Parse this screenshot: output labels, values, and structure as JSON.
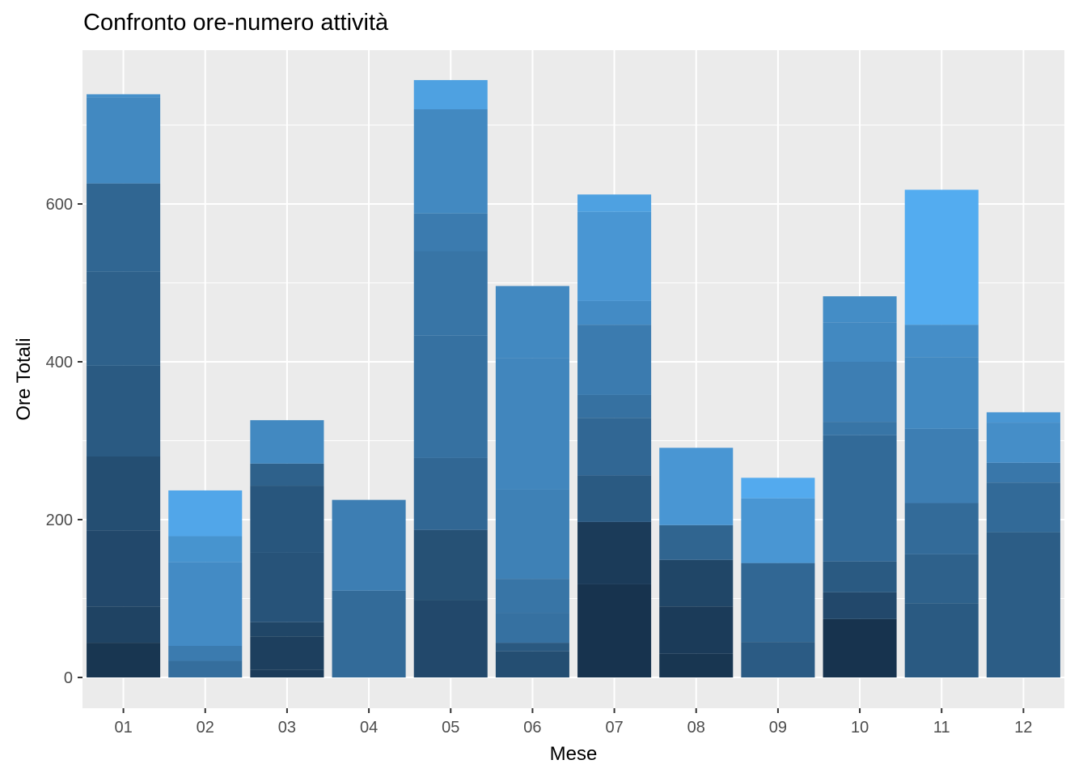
{
  "chart_data": {
    "type": "bar",
    "stacked": true,
    "title": "Confronto ore-numero attività",
    "xlabel": "Mese",
    "ylabel": "Ore Totali",
    "ylim": [
      -38,
      800
    ],
    "yticks": [
      0,
      200,
      400,
      600
    ],
    "grid": true,
    "legend": "none",
    "color_low": "#132B43",
    "color_high": "#56B1F7",
    "panel_background": "#EBEBEB",
    "gridline_color": "#FFFFFF",
    "categories": [
      "01",
      "02",
      "03",
      "04",
      "05",
      "06",
      "07",
      "08",
      "09",
      "10",
      "11",
      "12"
    ],
    "segments": [
      [
        [
          0,
          44,
          0.08
        ],
        [
          44,
          90,
          0.18
        ],
        [
          90,
          186,
          0.22
        ],
        [
          186,
          280,
          0.26
        ],
        [
          280,
          395,
          0.35
        ],
        [
          395,
          514,
          0.4
        ],
        [
          514,
          626,
          0.44
        ],
        [
          626,
          735,
          0.7
        ],
        [
          735,
          739,
          0.75
        ]
      ],
      [
        [
          0,
          21,
          0.5
        ],
        [
          21,
          40,
          0.6
        ],
        [
          40,
          146,
          0.72
        ],
        [
          146,
          179,
          0.78
        ],
        [
          179,
          237,
          0.92
        ]
      ],
      [
        [
          0,
          10,
          0.12
        ],
        [
          10,
          52,
          0.15
        ],
        [
          52,
          70,
          0.2
        ],
        [
          70,
          158,
          0.3
        ],
        [
          158,
          243,
          0.32
        ],
        [
          243,
          271,
          0.4
        ],
        [
          271,
          326,
          0.7
        ]
      ],
      [
        [
          0,
          110,
          0.48
        ],
        [
          110,
          225,
          0.62
        ]
      ],
      [
        [
          0,
          98,
          0.22
        ],
        [
          98,
          187,
          0.28
        ],
        [
          187,
          278,
          0.45
        ],
        [
          278,
          433,
          0.52
        ],
        [
          433,
          540,
          0.55
        ],
        [
          540,
          588,
          0.6
        ],
        [
          588,
          720,
          0.7
        ],
        [
          720,
          757,
          0.88
        ]
      ],
      [
        [
          0,
          33,
          0.26
        ],
        [
          33,
          44,
          0.34
        ],
        [
          44,
          82,
          0.52
        ],
        [
          82,
          125,
          0.55
        ],
        [
          125,
          238,
          0.64
        ],
        [
          238,
          405,
          0.68
        ],
        [
          405,
          496,
          0.7
        ]
      ],
      [
        [
          0,
          118,
          0.06
        ],
        [
          118,
          197,
          0.12
        ],
        [
          197,
          256,
          0.35
        ],
        [
          256,
          329,
          0.45
        ],
        [
          329,
          358,
          0.52
        ],
        [
          358,
          447,
          0.6
        ],
        [
          447,
          477,
          0.72
        ],
        [
          477,
          590,
          0.8
        ],
        [
          590,
          612,
          0.88
        ]
      ],
      [
        [
          0,
          30,
          0.08
        ],
        [
          30,
          90,
          0.12
        ],
        [
          90,
          149,
          0.2
        ],
        [
          149,
          193,
          0.43
        ],
        [
          193,
          291,
          0.8
        ]
      ],
      [
        [
          0,
          45,
          0.36
        ],
        [
          45,
          145,
          0.45
        ],
        [
          145,
          227,
          0.8
        ],
        [
          227,
          253,
          0.95
        ]
      ],
      [
        [
          0,
          74,
          0.06
        ],
        [
          74,
          108,
          0.22
        ],
        [
          108,
          147,
          0.35
        ],
        [
          147,
          307,
          0.47
        ],
        [
          307,
          324,
          0.55
        ],
        [
          324,
          400,
          0.62
        ],
        [
          400,
          450,
          0.7
        ],
        [
          450,
          483,
          0.73
        ]
      ],
      [
        [
          0,
          94,
          0.35
        ],
        [
          94,
          156,
          0.4
        ],
        [
          156,
          221,
          0.48
        ],
        [
          221,
          315,
          0.62
        ],
        [
          315,
          406,
          0.7
        ],
        [
          406,
          447,
          0.74
        ],
        [
          447,
          618,
          0.96
        ]
      ],
      [
        [
          0,
          184,
          0.37
        ],
        [
          184,
          247,
          0.47
        ],
        [
          247,
          272,
          0.57
        ],
        [
          272,
          323,
          0.74
        ],
        [
          323,
          336,
          0.8
        ]
      ]
    ]
  }
}
